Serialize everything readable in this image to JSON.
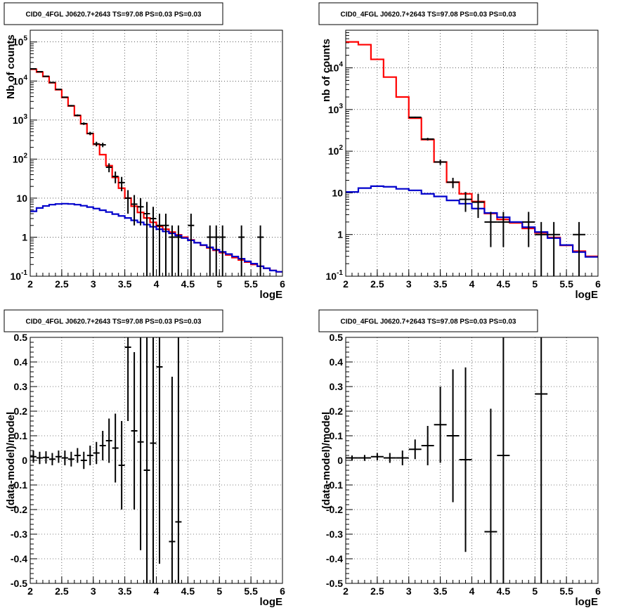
{
  "chart_data": [
    {
      "id": "p1",
      "type": "line",
      "title": "CID0_4FGL J0620.7+2643 TS=97.08 PS=0.03 PS=0.03",
      "xlabel": "logE",
      "ylabel": "Nb of counts",
      "xlim": [
        2,
        6
      ],
      "ylim": [
        0.1,
        200000
      ],
      "log_y": true,
      "grid": true,
      "x_ticks": [
        "2",
        "2.5",
        "3",
        "3.5",
        "4",
        "4.5",
        "5",
        "5.5",
        "6"
      ],
      "y_ticks": [
        "10^-1",
        "1",
        "10",
        "10^2",
        "10^3",
        "10^4",
        "10^5"
      ],
      "colors": {
        "total_model": "#ff0000",
        "background_model": "#0000cc",
        "data": "#000000"
      },
      "x_edges": [
        2.0,
        2.1,
        2.2,
        2.3,
        2.4,
        2.5,
        2.6,
        2.7,
        2.8,
        2.9,
        3.0,
        3.1,
        3.2,
        3.3,
        3.4,
        3.5,
        3.6,
        3.7,
        3.8,
        3.9,
        4.0,
        4.1,
        4.2,
        4.3,
        4.4,
        4.5,
        4.6,
        4.7,
        4.8,
        4.9,
        5.0,
        5.1,
        5.2,
        5.3,
        5.4,
        5.5,
        5.6,
        5.7,
        5.8,
        5.9,
        6.0
      ],
      "series": [
        {
          "style": "step",
          "values": [
            20000,
            17000,
            13000,
            9000,
            6000,
            3800,
            2300,
            1300,
            800,
            450,
            240,
            130,
            68,
            34,
            18,
            10,
            6.2,
            4.3,
            3.1,
            2.4,
            1.9,
            1.6,
            1.35,
            1.15,
            1.0,
            0.85,
            0.72,
            0.62,
            0.53,
            0.46,
            0.4,
            0.35,
            0.3,
            0.26,
            0.23,
            0.2,
            0.18,
            0.16,
            0.14,
            0.13
          ]
        },
        {
          "style": "step",
          "values": [
            4.6,
            5.6,
            6.3,
            6.8,
            7.1,
            7.2,
            7.1,
            6.8,
            6.4,
            5.9,
            5.4,
            4.9,
            4.4,
            3.9,
            3.5,
            3.1,
            2.7,
            2.4,
            2.1,
            1.85,
            1.6,
            1.4,
            1.25,
            1.1,
            0.95,
            0.83,
            0.72,
            0.63,
            0.55,
            0.48,
            0.42,
            0.37,
            0.32,
            0.28,
            0.24,
            0.21,
            0.18,
            0.16,
            0.14,
            0.13
          ]
        },
        {
          "style": "errorbar",
          "points": [
            [
              2.05,
              20500,
              300
            ],
            [
              2.15,
              17300,
              270
            ],
            [
              2.25,
              13200,
              240
            ],
            [
              2.35,
              9150,
              200
            ],
            [
              2.45,
              6100,
              160
            ],
            [
              2.55,
              3850,
              130
            ],
            [
              2.65,
              2330,
              100
            ],
            [
              2.75,
              1320,
              75
            ],
            [
              2.85,
              810,
              60
            ],
            [
              2.95,
              455,
              45
            ],
            [
              3.05,
              245,
              33
            ],
            [
              3.15,
              232,
              30
            ],
            [
              3.25,
              62,
              16
            ],
            [
              3.35,
              36,
              12
            ],
            [
              3.45,
              25,
              10
            ],
            [
              3.55,
              10,
              6
            ],
            [
              3.65,
              7,
              5
            ],
            [
              3.75,
              6,
              4
            ],
            [
              3.85,
              4,
              4
            ],
            [
              3.95,
              3,
              3
            ],
            [
              4.05,
              2,
              2
            ],
            [
              4.15,
              2,
              2
            ],
            [
              4.25,
              1,
              1
            ],
            [
              4.35,
              1,
              1
            ],
            [
              4.55,
              2,
              2
            ],
            [
              4.85,
              1,
              1
            ],
            [
              4.95,
              1,
              1
            ],
            [
              5.05,
              1,
              1
            ],
            [
              5.35,
              1,
              1
            ],
            [
              5.65,
              1,
              1
            ]
          ]
        }
      ]
    },
    {
      "id": "p2",
      "type": "line",
      "title": "CID0_4FGL J0620.7+2643 TS=97.08 PS=0.03 PS=0.03",
      "xlabel": "logE",
      "ylabel": "nb of counts",
      "xlim": [
        2,
        6
      ],
      "ylim": [
        0.1,
        80000
      ],
      "log_y": true,
      "grid": true,
      "x_ticks": [
        "2",
        "2.5",
        "3",
        "3.5",
        "4",
        "4.5",
        "5",
        "5.5",
        "6"
      ],
      "y_ticks": [
        "10^-1",
        "1",
        "10",
        "10^2",
        "10^3",
        "10^4"
      ],
      "colors": {
        "total_model": "#ff0000",
        "background_model": "#0000cc",
        "data": "#000000"
      },
      "x_edges": [
        2.0,
        2.2,
        2.4,
        2.6,
        2.8,
        3.0,
        3.2,
        3.4,
        3.6,
        3.8,
        4.0,
        4.2,
        4.4,
        4.6,
        4.8,
        5.0,
        5.2,
        5.4,
        5.6,
        5.8,
        6.0
      ],
      "series": [
        {
          "style": "step",
          "values": [
            42000,
            36000,
            16000,
            6000,
            2000,
            620,
            190,
            55,
            18,
            9.5,
            6.2,
            3.2,
            2.3,
            1.9,
            1.4,
            1.1,
            0.85,
            0.55,
            0.4,
            0.3
          ]
        },
        {
          "style": "step",
          "values": [
            10.5,
            13,
            14.5,
            14,
            12.5,
            11.5,
            9.5,
            8.2,
            6.6,
            5.5,
            4.2,
            3.3,
            2.6,
            2.0,
            1.5,
            1.15,
            0.82,
            0.56,
            0.38,
            0.29
          ]
        },
        {
          "style": "errorbar",
          "points": [
            [
              3.1,
              650,
              25
            ],
            [
              3.3,
              195,
              14
            ],
            [
              3.5,
              55,
              8
            ],
            [
              3.7,
              18,
              5
            ],
            [
              3.9,
              7,
              3.5
            ],
            [
              4.1,
              6,
              3.5
            ],
            [
              4.3,
              2,
              1.5
            ],
            [
              4.5,
              2,
              1.5
            ],
            [
              4.9,
              2,
              1.5
            ],
            [
              5.1,
              1,
              1
            ],
            [
              5.3,
              1,
              1
            ],
            [
              5.7,
              1,
              1
            ]
          ]
        }
      ]
    },
    {
      "id": "p3",
      "type": "scatter",
      "title": "CID0_4FGL J0620.7+2643 TS=97.08 PS=0.03 PS=0.03",
      "xlabel": "logE",
      "ylabel": "(data-model)/model",
      "xlim": [
        2,
        6
      ],
      "ylim": [
        -0.5,
        0.5
      ],
      "grid": true,
      "x_ticks": [
        "2",
        "2.5",
        "3",
        "3.5",
        "4",
        "4.5",
        "5",
        "5.5",
        "6"
      ],
      "y_ticks": [
        "-0.5",
        "-0.4",
        "-0.3",
        "-0.2",
        "-0.1",
        "0",
        "0.1",
        "0.2",
        "0.3",
        "0.4",
        "0.5"
      ],
      "points": [
        [
          2.05,
          0.015,
          0.025,
          0.05
        ],
        [
          2.15,
          0.01,
          0.025,
          0.05
        ],
        [
          2.25,
          0.012,
          0.025,
          0.05
        ],
        [
          2.35,
          0.005,
          0.025,
          0.05
        ],
        [
          2.45,
          0.015,
          0.025,
          0.05
        ],
        [
          2.55,
          0.01,
          0.03,
          0.05
        ],
        [
          2.65,
          0.005,
          0.03,
          0.05
        ],
        [
          2.75,
          0.02,
          0.03,
          0.05
        ],
        [
          2.85,
          0.0,
          0.035,
          0.05
        ],
        [
          2.95,
          0.02,
          0.04,
          0.05
        ],
        [
          3.05,
          0.03,
          0.045,
          0.05
        ],
        [
          3.15,
          0.06,
          0.06,
          0.05
        ],
        [
          3.25,
          0.08,
          0.09,
          0.05
        ],
        [
          3.35,
          0.05,
          0.14,
          0.05
        ],
        [
          3.45,
          -0.02,
          0.18,
          0.05
        ],
        [
          3.55,
          0.46,
          0.3,
          0.05
        ],
        [
          3.65,
          0.12,
          0.32,
          0.05
        ],
        [
          3.75,
          0.075,
          0.44,
          0.05
        ],
        [
          3.85,
          -0.04,
          0.6,
          0.05
        ],
        [
          3.95,
          0.07,
          0.65,
          0.05
        ],
        [
          4.05,
          0.38,
          0.8,
          0.05
        ],
        [
          4.25,
          -0.33,
          0.67,
          0.05
        ],
        [
          4.35,
          -0.25,
          1.0,
          0.05
        ]
      ]
    },
    {
      "id": "p4",
      "type": "scatter",
      "title": "CID0_4FGL J0620.7+2643 TS=97.08 PS=0.03 PS=0.03",
      "xlabel": "logE",
      "ylabel": "(data-model)/model",
      "xlim": [
        2,
        6
      ],
      "ylim": [
        -0.5,
        0.5
      ],
      "grid": true,
      "x_ticks": [
        "2",
        "2.5",
        "3",
        "3.5",
        "4",
        "4.5",
        "5",
        "5.5",
        "6"
      ],
      "y_ticks": [
        "-0.5",
        "-0.4",
        "-0.3",
        "-0.2",
        "-0.1",
        "0",
        "0.1",
        "0.2",
        "0.3",
        "0.4",
        "0.5"
      ],
      "points": [
        [
          2.1,
          0.01,
          0.01,
          0.1
        ],
        [
          2.3,
          0.01,
          0.012,
          0.1
        ],
        [
          2.5,
          0.015,
          0.015,
          0.1
        ],
        [
          2.7,
          0.01,
          0.02,
          0.1
        ],
        [
          2.9,
          0.01,
          0.03,
          0.1
        ],
        [
          3.1,
          0.045,
          0.04,
          0.1
        ],
        [
          3.3,
          0.06,
          0.08,
          0.1
        ],
        [
          3.5,
          0.145,
          0.155,
          0.1
        ],
        [
          3.7,
          0.1,
          0.27,
          0.1
        ],
        [
          3.9,
          0.003,
          0.375,
          0.1
        ],
        [
          4.3,
          -0.29,
          0.5,
          0.1
        ],
        [
          4.5,
          0.02,
          0.6,
          0.1
        ],
        [
          5.1,
          0.27,
          0.8,
          0.1
        ]
      ]
    }
  ]
}
